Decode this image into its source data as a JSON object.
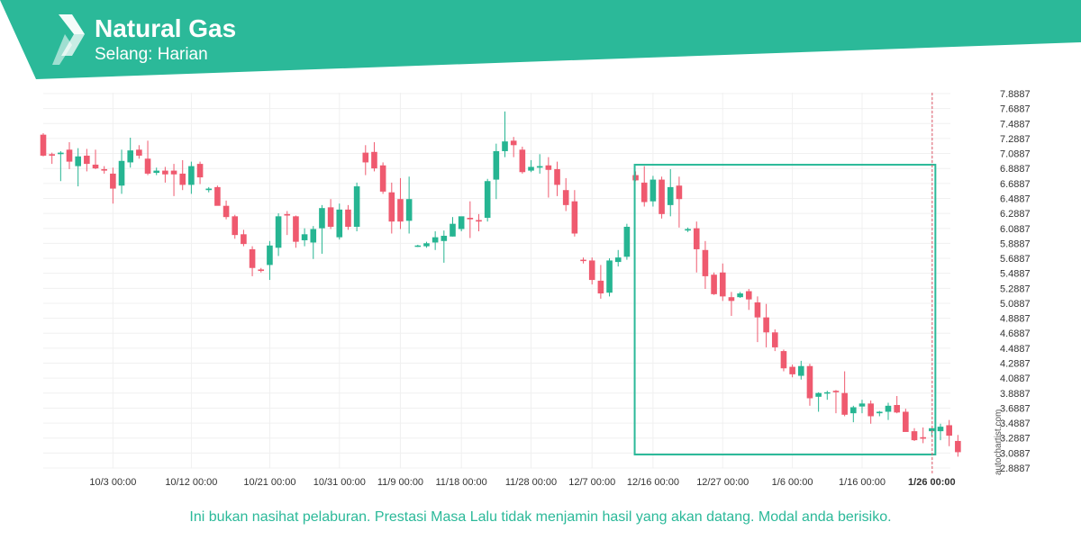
{
  "header": {
    "title": "Natural Gas",
    "subtitle": "Selang: Harian",
    "accent_color": "#2bb999",
    "logo_icon": "autochartist-logo-icon"
  },
  "disclaimer": "Ini bukan nasihat pelaburan. Prestasi Masa Lalu tidak menjamin hasil yang akan datang. Modal anda berisiko.",
  "watermark": "autochartist.com",
  "chart_data": {
    "type": "candlestick",
    "up_color": "#26b592",
    "down_color": "#ef5a6f",
    "ylim": [
      2.8887,
      7.9887
    ],
    "y_ticks": [
      "7.8887",
      "7.6887",
      "7.4887",
      "7.2887",
      "7.0887",
      "6.8887",
      "6.6887",
      "6.4887",
      "6.2887",
      "6.0887",
      "5.8887",
      "5.6887",
      "5.4887",
      "5.2887",
      "5.0887",
      "4.8887",
      "4.6887",
      "4.4887",
      "4.2887",
      "4.0887",
      "3.8887",
      "3.6887",
      "3.4887",
      "3.2887",
      "3.0887",
      "2.8887"
    ],
    "x_tick_labels": [
      {
        "label": "10/3 00:00",
        "index": 8
      },
      {
        "label": "10/12 00:00",
        "index": 17
      },
      {
        "label": "10/21 00:00",
        "index": 26
      },
      {
        "label": "10/31 00:00",
        "index": 34
      },
      {
        "label": "11/9 00:00",
        "index": 41
      },
      {
        "label": "11/18 00:00",
        "index": 48
      },
      {
        "label": "11/28 00:00",
        "index": 56
      },
      {
        "label": "12/7 00:00",
        "index": 63
      },
      {
        "label": "12/16 00:00",
        "index": 70
      },
      {
        "label": "12/27 00:00",
        "index": 78
      },
      {
        "label": "1/6 00:00",
        "index": 86
      },
      {
        "label": "1/16 00:00",
        "index": 94
      },
      {
        "label": "1/26 00:00",
        "index": 102,
        "bold": true
      }
    ],
    "pattern_box": {
      "start_index": 68,
      "end_index": 102,
      "high": 6.9387,
      "low": 3.0687
    },
    "current_index": 102,
    "candles": [
      [
        7.34,
        7.36,
        7.05,
        7.06
      ],
      [
        7.08,
        7.1,
        6.95,
        7.06
      ],
      [
        7.08,
        7.12,
        6.72,
        7.1
      ],
      [
        7.14,
        7.24,
        6.88,
        6.98
      ],
      [
        6.92,
        7.16,
        6.65,
        7.05
      ],
      [
        7.06,
        7.15,
        6.85,
        6.95
      ],
      [
        6.94,
        7.14,
        6.88,
        6.89
      ],
      [
        6.88,
        6.92,
        6.82,
        6.86
      ],
      [
        6.82,
        6.9,
        6.42,
        6.62
      ],
      [
        6.66,
        7.14,
        6.55,
        6.99
      ],
      [
        6.97,
        7.3,
        6.9,
        7.13
      ],
      [
        7.14,
        7.2,
        7.02,
        7.06
      ],
      [
        7.02,
        7.26,
        6.8,
        6.82
      ],
      [
        6.83,
        6.9,
        6.8,
        6.86
      ],
      [
        6.86,
        6.91,
        6.7,
        6.81
      ],
      [
        6.86,
        6.95,
        6.52,
        6.81
      ],
      [
        6.82,
        7.0,
        6.6,
        6.67
      ],
      [
        6.67,
        6.98,
        6.55,
        6.92
      ],
      [
        6.95,
        6.98,
        6.68,
        6.77
      ],
      [
        6.6,
        6.64,
        6.57,
        6.62
      ],
      [
        6.64,
        6.66,
        6.42,
        6.39
      ],
      [
        6.39,
        6.46,
        6.21,
        6.24
      ],
      [
        6.25,
        6.27,
        5.95,
        6.0
      ],
      [
        6.01,
        6.07,
        5.85,
        5.88
      ],
      [
        5.81,
        5.85,
        5.45,
        5.56
      ],
      [
        5.54,
        5.56,
        5.5,
        5.52
      ],
      [
        5.6,
        5.92,
        5.4,
        5.86
      ],
      [
        5.83,
        6.29,
        5.72,
        6.25
      ],
      [
        6.28,
        6.32,
        6.0,
        6.26
      ],
      [
        6.25,
        6.26,
        5.83,
        5.91
      ],
      [
        5.93,
        6.09,
        5.85,
        6.01
      ],
      [
        5.9,
        6.12,
        5.68,
        6.08
      ],
      [
        6.09,
        6.4,
        5.75,
        6.36
      ],
      [
        6.37,
        6.48,
        6.08,
        6.11
      ],
      [
        5.97,
        6.42,
        5.94,
        6.34
      ],
      [
        6.34,
        6.4,
        6.07,
        6.11
      ],
      [
        6.11,
        6.7,
        6.05,
        6.65
      ],
      [
        7.1,
        7.2,
        6.8,
        6.97
      ],
      [
        7.11,
        7.24,
        6.85,
        6.89
      ],
      [
        6.93,
        6.97,
        6.55,
        6.58
      ],
      [
        6.57,
        6.7,
        6.02,
        6.18
      ],
      [
        6.48,
        6.76,
        6.08,
        6.18
      ],
      [
        6.19,
        6.78,
        6.02,
        6.48
      ],
      [
        5.85,
        5.87,
        5.84,
        5.86
      ],
      [
        5.85,
        5.91,
        5.83,
        5.89
      ],
      [
        5.9,
        6.05,
        5.8,
        5.97
      ],
      [
        5.92,
        6.06,
        5.63,
        5.99
      ],
      [
        5.98,
        6.24,
        5.98,
        6.15
      ],
      [
        6.08,
        6.22,
        6.05,
        6.25
      ],
      [
        6.23,
        6.45,
        5.96,
        6.21
      ],
      [
        6.2,
        6.28,
        6.05,
        6.18
      ],
      [
        6.23,
        6.75,
        6.18,
        6.72
      ],
      [
        6.74,
        7.22,
        6.48,
        7.12
      ],
      [
        7.12,
        7.65,
        7.04,
        7.25
      ],
      [
        7.26,
        7.31,
        7.04,
        7.2
      ],
      [
        7.14,
        7.18,
        6.82,
        6.84
      ],
      [
        6.86,
        7.0,
        6.84,
        6.91
      ],
      [
        6.9,
        7.08,
        6.82,
        6.92
      ],
      [
        6.93,
        7.04,
        6.5,
        6.87
      ],
      [
        6.88,
        6.98,
        6.52,
        6.67
      ],
      [
        6.6,
        6.76,
        6.32,
        6.4
      ],
      [
        6.45,
        6.6,
        5.98,
        6.02
      ],
      [
        5.67,
        5.7,
        5.62,
        5.66
      ],
      [
        5.66,
        5.7,
        5.34,
        5.4
      ],
      [
        5.39,
        5.6,
        5.15,
        5.22
      ],
      [
        5.23,
        5.69,
        5.18,
        5.66
      ],
      [
        5.64,
        5.8,
        5.58,
        5.7
      ],
      [
        5.71,
        6.15,
        5.67,
        6.11
      ],
      [
        6.8,
        6.85,
        6.72,
        6.73
      ],
      [
        6.7,
        6.92,
        6.38,
        6.44
      ],
      [
        6.45,
        6.79,
        6.38,
        6.74
      ],
      [
        6.74,
        6.78,
        6.22,
        6.28
      ],
      [
        6.4,
        6.88,
        6.25,
        6.64
      ],
      [
        6.66,
        6.78,
        6.1,
        6.48
      ],
      [
        6.06,
        6.1,
        6.04,
        6.08
      ],
      [
        6.09,
        6.18,
        5.5,
        5.81
      ],
      [
        5.8,
        5.92,
        5.28,
        5.45
      ],
      [
        5.47,
        5.5,
        5.2,
        5.21
      ],
      [
        5.5,
        5.62,
        5.12,
        5.18
      ],
      [
        5.17,
        5.24,
        4.92,
        5.12
      ],
      [
        5.17,
        5.24,
        5.16,
        5.22
      ],
      [
        5.25,
        5.28,
        5.0,
        5.14
      ],
      [
        5.1,
        5.18,
        4.57,
        4.9
      ],
      [
        4.9,
        5.08,
        4.5,
        4.7
      ],
      [
        4.7,
        4.74,
        4.45,
        4.5
      ],
      [
        4.45,
        4.47,
        4.18,
        4.22
      ],
      [
        4.24,
        4.27,
        4.1,
        4.14
      ],
      [
        4.12,
        4.32,
        4.07,
        4.25
      ],
      [
        4.25,
        4.28,
        3.72,
        3.82
      ],
      [
        3.84,
        3.9,
        3.64,
        3.89
      ],
      [
        3.9,
        3.92,
        3.8,
        3.9
      ],
      [
        3.92,
        3.93,
        3.62,
        3.9
      ],
      [
        3.89,
        4.18,
        3.58,
        3.6
      ],
      [
        3.62,
        3.72,
        3.5,
        3.7
      ],
      [
        3.71,
        3.8,
        3.62,
        3.75
      ],
      [
        3.75,
        3.79,
        3.48,
        3.58
      ],
      [
        3.62,
        3.65,
        3.58,
        3.64
      ],
      [
        3.64,
        3.76,
        3.53,
        3.72
      ],
      [
        3.73,
        3.85,
        3.62,
        3.63
      ],
      [
        3.64,
        3.68,
        3.38,
        3.37
      ],
      [
        3.38,
        3.42,
        3.25,
        3.26
      ],
      [
        3.3,
        3.43,
        3.22,
        3.28
      ],
      [
        3.38,
        3.42,
        3.31,
        3.42
      ],
      [
        3.38,
        3.48,
        3.26,
        3.44
      ],
      [
        3.46,
        3.53,
        3.18,
        3.32
      ],
      [
        3.25,
        3.33,
        3.04,
        3.1
      ]
    ]
  }
}
